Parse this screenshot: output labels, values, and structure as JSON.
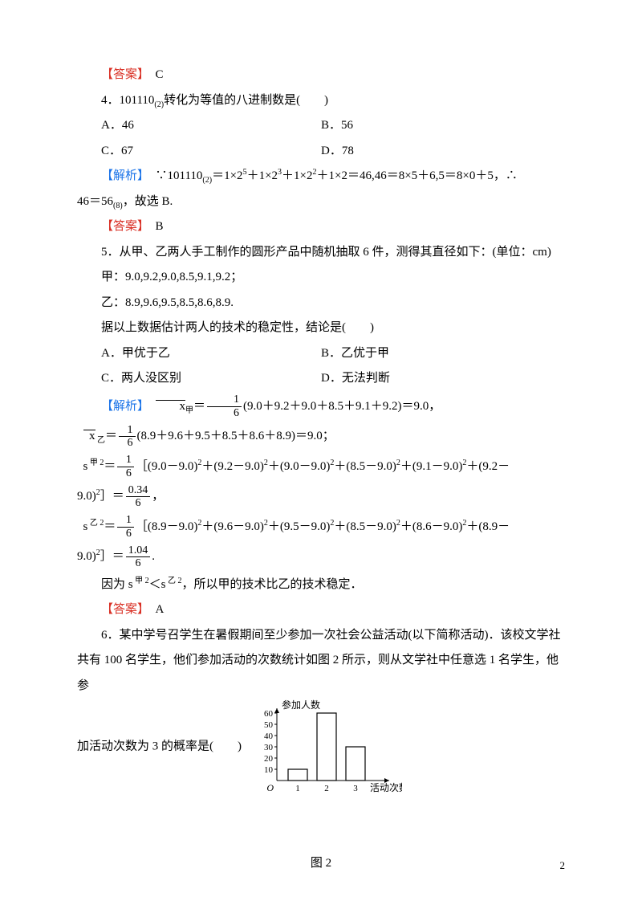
{
  "labels": {
    "answer": "【答案】",
    "analysis": "【解析】"
  },
  "q3": {
    "answer": "C"
  },
  "q4": {
    "stem": "4．101110",
    "stem_sub": "(2)",
    "stem_tail": "转化为等值的八进制数是(　　)",
    "optA": "A．46",
    "optB": "B．56",
    "optC": "C．67",
    "optD": "D．78",
    "analysis_pre": "∵101110",
    "analysis_sub1": "(2)",
    "analysis_mid1": "＝1×2",
    "exp5": "5",
    "analysis_mid2": "＋1×2",
    "exp3": "3",
    "analysis_mid3": "＋1×2",
    "exp2": "2",
    "analysis_mid4": "＋1×2＝46,46＝8×5＋6,5＝8×0＋5，∴",
    "analysis_tail_pre": "46＝56",
    "analysis_tail_sub": "(8)",
    "analysis_tail": "，故选 B.",
    "answer": "B"
  },
  "q5": {
    "stem": "5．从甲、乙两人手工制作的圆形产品中随机抽取 6 件，测得其直径如下：(单位：cm)",
    "data_jia": "甲：9.0,9.2,9.0,8.5,9.1,9.2；",
    "data_yi": "乙：8.9,9.6,9.5,8.5,8.6,8.9.",
    "stem2": "据以上数据估计两人的技术的稳定性，结论是(　　)",
    "optA": "A．甲优于乙",
    "optB": "B．乙优于甲",
    "optC": "C．两人没区别",
    "optD": "D．无法判断",
    "x_jia_label": "x",
    "mean_jia": "(9.0＋9.2＋9.0＋8.5＋9.1＋9.2)＝9.0，",
    "x_yi_label": "x",
    "yi_sub": " 乙",
    "mean_yi": "(8.9＋9.6＋9.5＋8.5＋8.6＋8.9)＝9.0；",
    "s_jia_label": "s",
    "jia_sup": " 甲 2",
    "s_jia_expr": "［(9.0－9.0)",
    "sq": "2",
    "s_jia_mid": "＋(9.2－9.0)",
    "s_jia_mid2": "＋(9.0－9.0)",
    "s_jia_mid3": "＋(8.5－9.0)",
    "s_jia_mid4": "＋(9.1－9.0)",
    "s_jia_mid5": "＋(9.2－",
    "s_jia_tail": "9.0)",
    "s_jia_close": "］＝",
    "s_jia_val_num": "0.34",
    "comma": "，",
    "s_yi_label": "s",
    "yi_sup": " 乙 2",
    "s_yi_expr": "［(8.9－9.0)",
    "s_yi_mid": "＋(9.6－9.0)",
    "s_yi_mid2": "＋(9.5－9.0)",
    "s_yi_mid3": "＋(8.5－9.0)",
    "s_yi_mid4": "＋(8.6－9.0)",
    "s_yi_mid5": "＋(8.9－",
    "s_yi_tail": "9.0)",
    "s_yi_close": "］＝",
    "s_yi_val_num": "1.04",
    "period": ".",
    "concl_pre": "因为 ",
    "concl_s1": "s",
    "concl_lt": "＜",
    "concl_s2": "s",
    "concl_post": "，所以甲的技术比乙的技术稳定．",
    "one": "1",
    "six": "6",
    "answer": "A"
  },
  "q6": {
    "stem_l1": "6．某中学号召学生在暑假期间至少参加一次社会公益活动(以下简称活动)．该校文学社",
    "stem_l2": "共有 100 名学生，他们参加活动的次数统计如图 2 所示，则从文学社中任意选 1 名学生，他参",
    "stem_l3": "加活动次数为 3 的概率是(　　)",
    "fig_label": "图 2",
    "chart": {
      "ylabel": "参加人数",
      "xlabel": "活动次数",
      "yticks": [
        "10",
        "20",
        "30",
        "40",
        "50",
        "60"
      ],
      "xticks": [
        "1",
        "2",
        "3"
      ],
      "bars": [
        10,
        60,
        30
      ],
      "axis_color": "#000000",
      "bar_color": "#ffffff",
      "bar_border": "#000000"
    }
  },
  "page_number": "2"
}
